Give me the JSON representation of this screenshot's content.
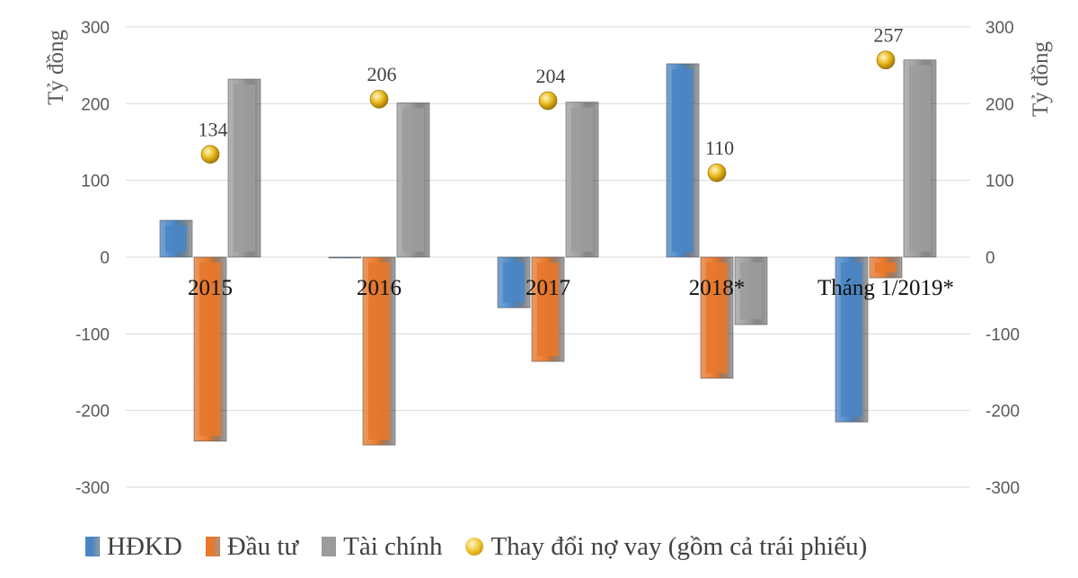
{
  "chart_data": {
    "type": "bar",
    "ylabel_left": "Tỷ đồng",
    "ylabel_right": "Tỷ đồng",
    "ylim": [
      -300,
      300
    ],
    "yticks": [
      -300,
      -200,
      -100,
      0,
      100,
      200,
      300
    ],
    "grid": true,
    "legend_position": "bottom",
    "categories": [
      "2015",
      "2016",
      "2017",
      "2018*",
      "Tháng 1/2019*"
    ],
    "series": [
      {
        "name": "HĐKD",
        "type": "bar",
        "color": "#4a86c5",
        "values": [
          48,
          0,
          -66,
          252,
          -215
        ]
      },
      {
        "name": "Đầu tư",
        "type": "bar",
        "color": "#e7782c",
        "values": [
          -240,
          -245,
          -136,
          -158,
          -27
        ]
      },
      {
        "name": "Tài chính",
        "type": "bar",
        "color": "#9c9c9c",
        "values": [
          232,
          201,
          202,
          -88,
          257
        ]
      },
      {
        "name": "Thay đổi nợ vay (gồm cả trái phiếu)",
        "type": "point",
        "color": "#e9b91c",
        "values": [
          134,
          206,
          204,
          110,
          257
        ]
      }
    ],
    "data_labels": [
      "134",
      "206",
      "204",
      "110",
      "257"
    ]
  }
}
